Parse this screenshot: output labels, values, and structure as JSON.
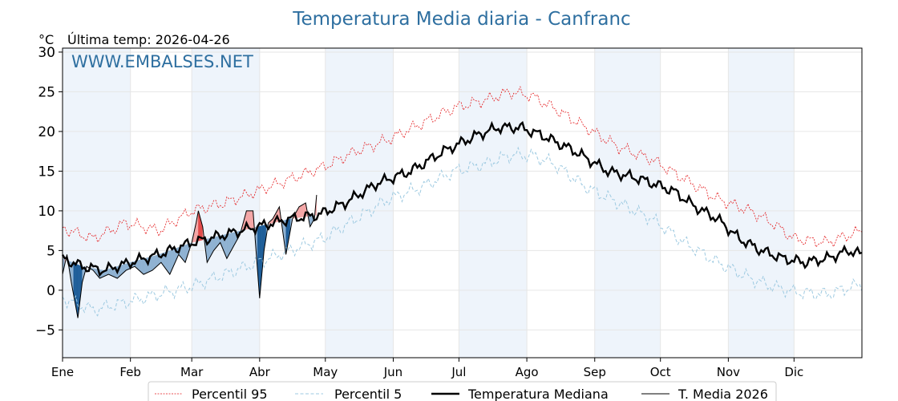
{
  "chart_data": {
    "type": "line",
    "title": "Temperatura Media diaria - Canfranc",
    "unit_label": "°C",
    "subtitle": "Última temp: 2026-04-26",
    "watermark": "WWW.EMBALSES.NET",
    "x_ticks": [
      "Ene",
      "Feb",
      "Mar",
      "Abr",
      "May",
      "Jun",
      "Jul",
      "Ago",
      "Sep",
      "Oct",
      "Nov",
      "Dic"
    ],
    "y_ticks": [
      "−5",
      "0",
      "5",
      "10",
      "15",
      "20",
      "25",
      "30"
    ],
    "y_tick_values": [
      -5,
      0,
      5,
      10,
      15,
      20,
      25,
      30
    ],
    "ylim": [
      -8.5,
      30.5
    ],
    "xlim_days": [
      1,
      366
    ],
    "grid": true,
    "legend_position": "bottom",
    "series": [
      {
        "name": "Percentil 95",
        "style": "dotted",
        "color": "#e41a1c",
        "points": [
          [
            1,
            7.8
          ],
          [
            15,
            6.5
          ],
          [
            30,
            8.5
          ],
          [
            45,
            7.5
          ],
          [
            60,
            10
          ],
          [
            75,
            11
          ],
          [
            90,
            12.5
          ],
          [
            105,
            14
          ],
          [
            120,
            15.5
          ],
          [
            135,
            17.5
          ],
          [
            150,
            19
          ],
          [
            165,
            21
          ],
          [
            180,
            23
          ],
          [
            195,
            24
          ],
          [
            205,
            25
          ],
          [
            215,
            24.5
          ],
          [
            225,
            23
          ],
          [
            240,
            20.5
          ],
          [
            255,
            18
          ],
          [
            270,
            16.5
          ],
          [
            285,
            14
          ],
          [
            300,
            11.5
          ],
          [
            315,
            10
          ],
          [
            325,
            8.5
          ],
          [
            335,
            6.5
          ],
          [
            350,
            6
          ],
          [
            366,
            7.5
          ]
        ]
      },
      {
        "name": "Percentil 5",
        "style": "dashed",
        "color": "#9ecae1",
        "points": [
          [
            1,
            -1
          ],
          [
            15,
            -2.5
          ],
          [
            30,
            -1.5
          ],
          [
            45,
            -0.5
          ],
          [
            60,
            0.5
          ],
          [
            75,
            2
          ],
          [
            90,
            3.5
          ],
          [
            105,
            5
          ],
          [
            120,
            6.5
          ],
          [
            135,
            9
          ],
          [
            150,
            11.5
          ],
          [
            165,
            13
          ],
          [
            180,
            15
          ],
          [
            195,
            16
          ],
          [
            205,
            17
          ],
          [
            215,
            17
          ],
          [
            225,
            16
          ],
          [
            240,
            13
          ],
          [
            255,
            11
          ],
          [
            270,
            9
          ],
          [
            285,
            6
          ],
          [
            300,
            3.5
          ],
          [
            315,
            1.5
          ],
          [
            325,
            0.5
          ],
          [
            335,
            -0.2
          ],
          [
            350,
            -0.5
          ],
          [
            366,
            0.8
          ]
        ]
      },
      {
        "name": "Temperatura Mediana",
        "style": "solid-thick",
        "color": "#000000",
        "points": [
          [
            1,
            4
          ],
          [
            10,
            3
          ],
          [
            20,
            2.5
          ],
          [
            32,
            3.5
          ],
          [
            45,
            4.5
          ],
          [
            60,
            6
          ],
          [
            75,
            7
          ],
          [
            90,
            8
          ],
          [
            105,
            9
          ],
          [
            118,
            9.5
          ],
          [
            130,
            11
          ],
          [
            145,
            13.5
          ],
          [
            160,
            15
          ],
          [
            175,
            17.5
          ],
          [
            190,
            19.5
          ],
          [
            200,
            20.5
          ],
          [
            210,
            20.5
          ],
          [
            220,
            19.5
          ],
          [
            235,
            17.5
          ],
          [
            250,
            15
          ],
          [
            265,
            14
          ],
          [
            280,
            12.5
          ],
          [
            290,
            10.5
          ],
          [
            300,
            9
          ],
          [
            310,
            6.5
          ],
          [
            320,
            5
          ],
          [
            330,
            4
          ],
          [
            340,
            3.5
          ],
          [
            350,
            4
          ],
          [
            360,
            5
          ],
          [
            366,
            4.5
          ]
        ]
      },
      {
        "name": "T. Media 2026",
        "style": "solid",
        "color": "#000000",
        "points": [
          [
            1,
            2
          ],
          [
            3,
            4.5
          ],
          [
            5,
            1
          ],
          [
            7,
            -2
          ],
          [
            8,
            -3.5
          ],
          [
            10,
            1
          ],
          [
            12,
            3
          ],
          [
            15,
            2.5
          ],
          [
            18,
            1.5
          ],
          [
            22,
            2
          ],
          [
            26,
            1.5
          ],
          [
            30,
            2.5
          ],
          [
            34,
            3
          ],
          [
            38,
            2
          ],
          [
            42,
            2.5
          ],
          [
            46,
            3.5
          ],
          [
            50,
            2
          ],
          [
            54,
            4.5
          ],
          [
            57,
            3.5
          ],
          [
            60,
            6
          ],
          [
            62,
            8.5
          ],
          [
            63,
            10
          ],
          [
            65,
            8
          ],
          [
            67,
            3.5
          ],
          [
            70,
            5
          ],
          [
            73,
            6
          ],
          [
            76,
            4
          ],
          [
            79,
            5.5
          ],
          [
            82,
            7
          ],
          [
            85,
            10
          ],
          [
            88,
            10
          ],
          [
            91,
            -1
          ],
          [
            93,
            5
          ],
          [
            95,
            8.5
          ],
          [
            97,
            9
          ],
          [
            100,
            10.5
          ],
          [
            103,
            4.5
          ],
          [
            106,
            9
          ],
          [
            109,
            10.5
          ],
          [
            112,
            11
          ],
          [
            114,
            8
          ],
          [
            116,
            9
          ],
          [
            117,
            12
          ]
        ]
      }
    ],
    "warm_fill_color": "#f4a6a6",
    "warm_fill_strong_color": "#e34a4a",
    "cold_fill_color": "#8fb2d2",
    "cold_fill_strong_color": "#1f5e99",
    "title_color": "#2e6fa0",
    "watermark_color": "#2e6fa0",
    "band_color": "#eef4fb"
  }
}
